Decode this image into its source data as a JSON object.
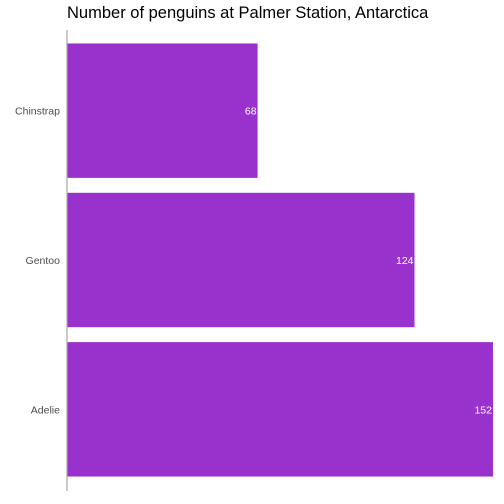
{
  "chart_data": {
    "type": "bar",
    "orientation": "horizontal",
    "title": "Number of penguins at Palmer Station, Antarctica",
    "xlabel": "",
    "ylabel": "",
    "categories": [
      "Chinstrap",
      "Gentoo",
      "Adelie"
    ],
    "values": [
      68,
      124,
      152
    ],
    "xlim": [
      0,
      152
    ],
    "grid": false,
    "legend": "none",
    "bar_color": "#9932CC",
    "label_color": "#ffffff",
    "axis_color": "#a6a6a6",
    "tick_label_color": "#4d4d4d"
  }
}
